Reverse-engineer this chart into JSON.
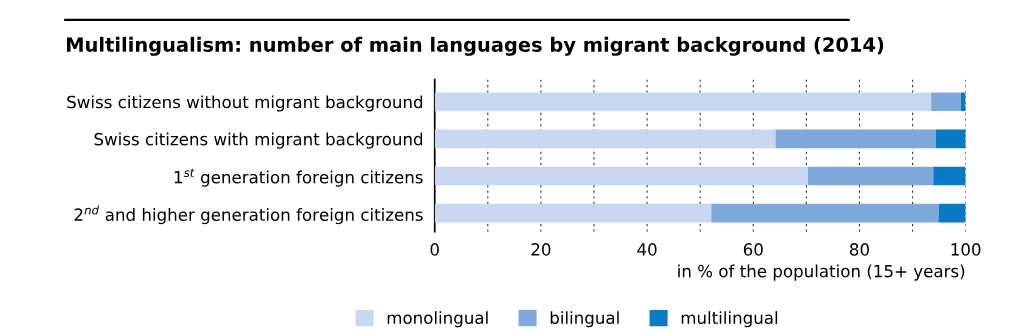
{
  "chart_data": {
    "type": "bar",
    "orientation": "horizontal",
    "stacked": true,
    "title": "Multilingualism: number of main languages by migrant background (2014)",
    "xlabel": "in % of the population (15+ years)",
    "categories": [
      "Swiss citizens without migrant background",
      "Swiss citizens with migrant background",
      "1$^{st}$ generation foreign citizens",
      "2$^{nd}$ and higher generation foreign citizens"
    ],
    "series": [
      {
        "name": "monolingual",
        "color": "#c9d7f0",
        "values": [
          93.5,
          64.2,
          70.3,
          52.1
        ]
      },
      {
        "name": "bilingual",
        "color": "#7fa8db",
        "values": [
          5.6,
          30.2,
          23.6,
          42.8
        ]
      },
      {
        "name": "multilingual",
        "color": "#0a7ac4",
        "values": [
          0.9,
          5.6,
          6.1,
          5.1
        ]
      }
    ],
    "xlim": [
      0,
      100
    ],
    "xticks": [
      0,
      {
        "value": 10,
        "label": null
      },
      20,
      {
        "value": 30,
        "label": null
      },
      40,
      {
        "value": 50,
        "label": null
      },
      60,
      {
        "value": 70,
        "label": null
      },
      80,
      {
        "value": 90,
        "label": null
      },
      100
    ],
    "grid": "x",
    "legend": "bottom"
  }
}
